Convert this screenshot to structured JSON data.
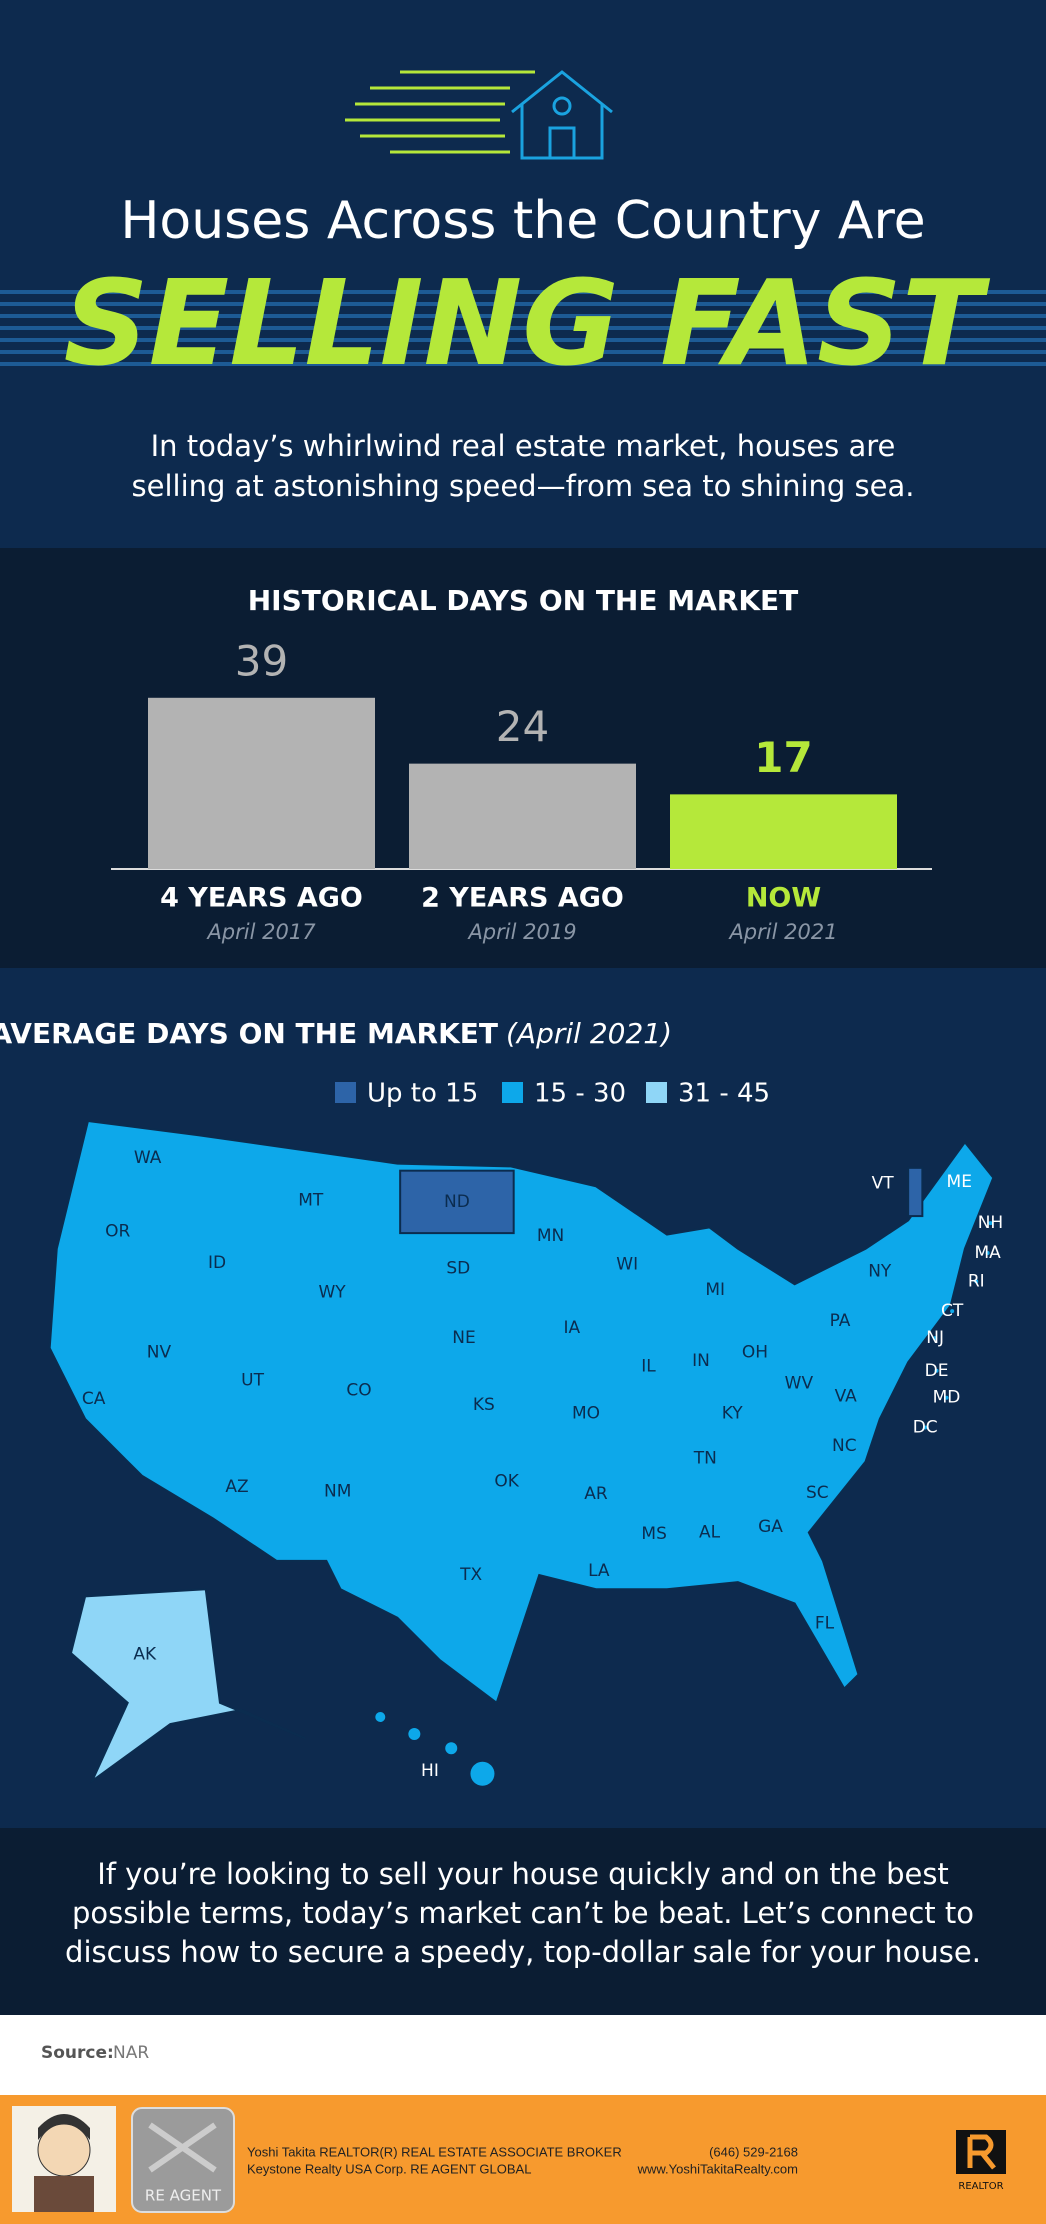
{
  "header": {
    "title": "Houses Across the Country Are",
    "headline": "SELLING FAST",
    "subtitle": [
      "In today’s whirlwind real estate market, houses are",
      "selling at astonishing speed—from sea to shining sea."
    ]
  },
  "chart_data": {
    "type": "bar",
    "title": "HISTORICAL DAYS ON THE MARKET",
    "categories": [
      "4 YEARS AGO",
      "2 YEARS AGO",
      "NOW"
    ],
    "subcategories": [
      "April 2017",
      "April 2019",
      "April 2021"
    ],
    "values": [
      39,
      24,
      17
    ],
    "colors": [
      "#b3b3b3",
      "#b3b3b3",
      "#b5e83a"
    ]
  },
  "map": {
    "title": "AVERAGE DAYS ON THE MARKET",
    "title_note": "(April 2021)",
    "legend": [
      {
        "label": "Up to 15",
        "color": "#2d64a8"
      },
      {
        "label": "15 - 30",
        "color": "#0da8ea"
      },
      {
        "label": "31 - 45",
        "color": "#8fd6f7"
      }
    ],
    "states": [
      {
        "label": "WA",
        "level": 1
      },
      {
        "label": "OR",
        "level": 1
      },
      {
        "label": "CA",
        "level": 1
      },
      {
        "label": "NV",
        "level": 1
      },
      {
        "label": "ID",
        "level": 1
      },
      {
        "label": "MT",
        "level": 1
      },
      {
        "label": "WY",
        "level": 1
      },
      {
        "label": "UT",
        "level": 1
      },
      {
        "label": "CO",
        "level": 1
      },
      {
        "label": "AZ",
        "level": 1
      },
      {
        "label": "NM",
        "level": 1
      },
      {
        "label": "ND",
        "level": 0
      },
      {
        "label": "SD",
        "level": 1
      },
      {
        "label": "NE",
        "level": 1
      },
      {
        "label": "KS",
        "level": 1
      },
      {
        "label": "OK",
        "level": 1
      },
      {
        "label": "TX",
        "level": 1
      },
      {
        "label": "MN",
        "level": 1
      },
      {
        "label": "IA",
        "level": 1
      },
      {
        "label": "MO",
        "level": 1
      },
      {
        "label": "AR",
        "level": 1
      },
      {
        "label": "LA",
        "level": 1
      },
      {
        "label": "WI",
        "level": 1
      },
      {
        "label": "IL",
        "level": 1
      },
      {
        "label": "MS",
        "level": 1
      },
      {
        "label": "MI",
        "level": 1
      },
      {
        "label": "IN",
        "level": 1
      },
      {
        "label": "KY",
        "level": 1
      },
      {
        "label": "TN",
        "level": 1
      },
      {
        "label": "AL",
        "level": 1
      },
      {
        "label": "OH",
        "level": 1
      },
      {
        "label": "WV",
        "level": 1
      },
      {
        "label": "VA",
        "level": 1
      },
      {
        "label": "NC",
        "level": 1
      },
      {
        "label": "SC",
        "level": 1
      },
      {
        "label": "GA",
        "level": 1
      },
      {
        "label": "FL",
        "level": 1
      },
      {
        "label": "PA",
        "level": 1
      },
      {
        "label": "NY",
        "level": 1
      },
      {
        "label": "VT",
        "level": 0
      },
      {
        "label": "NH",
        "level": 1
      },
      {
        "label": "ME",
        "level": 1
      },
      {
        "label": "MA",
        "level": 1
      },
      {
        "label": "RI",
        "level": 1
      },
      {
        "label": "CT",
        "level": 1
      },
      {
        "label": "NJ",
        "level": 1
      },
      {
        "label": "DE",
        "level": 1
      },
      {
        "label": "MD",
        "level": 1
      },
      {
        "label": "DC",
        "level": 1
      },
      {
        "label": "AK",
        "level": 2
      },
      {
        "label": "HI",
        "level": 1
      }
    ]
  },
  "cta": {
    "lines": [
      "If you’re looking to sell your house quickly and on the best",
      "possible terms, today’s market can’t be beat. Let’s connect to",
      "discuss how to secure a speedy, top-dollar sale for your house."
    ]
  },
  "source": {
    "label": "Source:",
    "text": "NAR"
  },
  "footer": {
    "line1": "Yoshi Takita REALTOR(R) REAL ESTATE ASSOCIATE BROKER",
    "line2": "Keystone Realty USA Corp.  RE AGENT GLOBAL",
    "phone": "(646) 529-2168",
    "web": "www.YoshiTakitaRealty.com",
    "logo": "RE AGENT",
    "realtor": "REALTOR"
  }
}
